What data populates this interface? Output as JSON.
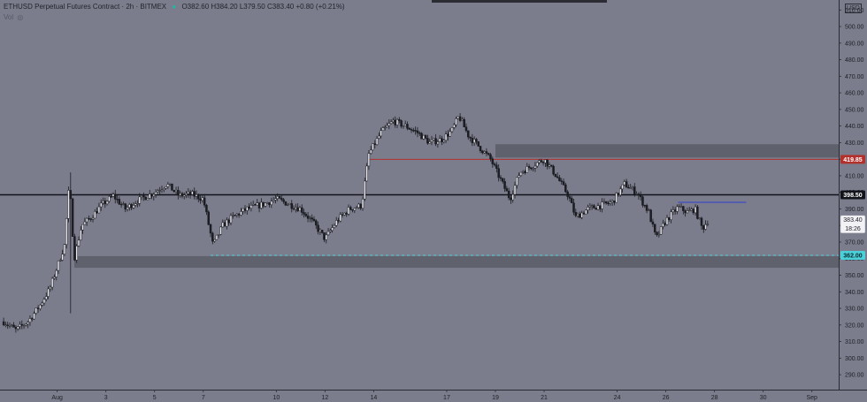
{
  "header": {
    "symbol": "ETHUSD Perpetual Futures Contract",
    "interval": "2h",
    "exchange": "BITMEX",
    "separator": "·",
    "dot": "●",
    "ohlc": "O382.60 H384.20 L379.50 C383.40 +0.80 (+0.21%)"
  },
  "volume_label": "Vol",
  "eye_icon": "◎",
  "currency_badge": "USD",
  "colors": {
    "background": "#7b7d8c",
    "candle": "#1c1d22",
    "zone": "#5b5c67",
    "resistance_line": "#b3312d",
    "support_line": "#11121a",
    "cyan_line": "#49d0d8",
    "blue_line": "#2f3fd1"
  },
  "chart_data": {
    "type": "candlestick",
    "title": "",
    "xlabel": "",
    "ylabel": "",
    "ylim": [
      281,
      516
    ],
    "y_ticks": [
      290,
      300,
      310,
      320,
      330,
      340,
      350,
      360,
      370,
      380,
      390,
      400,
      410,
      420,
      430,
      440,
      450,
      460,
      470,
      480,
      490,
      500,
      510
    ],
    "x_ticks": [
      {
        "label": "Aug",
        "day": 1
      },
      {
        "label": "3",
        "day": 3
      },
      {
        "label": "5",
        "day": 5
      },
      {
        "label": "7",
        "day": 7
      },
      {
        "label": "10",
        "day": 10
      },
      {
        "label": "12",
        "day": 12
      },
      {
        "label": "14",
        "day": 14
      },
      {
        "label": "17",
        "day": 17
      },
      {
        "label": "19",
        "day": 19
      },
      {
        "label": "21",
        "day": 21
      },
      {
        "label": "24",
        "day": 24
      },
      {
        "label": "26",
        "day": 26
      },
      {
        "label": "28",
        "day": 28
      },
      {
        "label": "30",
        "day": 30
      },
      {
        "label": "Sep",
        "day": 32
      }
    ],
    "x_range_days": [
      -1.35,
      33.1
    ],
    "price_path": [
      [
        -1.2,
        322
      ],
      [
        -0.7,
        317
      ],
      [
        -0.2,
        322
      ],
      [
        0.3,
        332
      ],
      [
        0.7,
        342
      ],
      [
        1.0,
        355
      ],
      [
        1.3,
        368
      ],
      [
        1.5,
        406
      ],
      [
        1.7,
        360
      ],
      [
        2.0,
        380
      ],
      [
        2.4,
        385
      ],
      [
        2.8,
        392
      ],
      [
        3.3,
        398
      ],
      [
        3.8,
        390
      ],
      [
        4.3,
        395
      ],
      [
        5.0,
        400
      ],
      [
        5.5,
        405
      ],
      [
        6.0,
        398
      ],
      [
        6.5,
        399
      ],
      [
        7.0,
        396
      ],
      [
        7.4,
        368
      ],
      [
        7.8,
        380
      ],
      [
        8.2,
        385
      ],
      [
        8.8,
        390
      ],
      [
        9.5,
        393
      ],
      [
        10.0,
        396
      ],
      [
        10.5,
        393
      ],
      [
        11.0,
        390
      ],
      [
        11.5,
        382
      ],
      [
        12.0,
        372
      ],
      [
        12.5,
        383
      ],
      [
        13.0,
        390
      ],
      [
        13.5,
        392
      ],
      [
        13.8,
        423
      ],
      [
        14.3,
        436
      ],
      [
        14.8,
        443
      ],
      [
        15.3,
        440
      ],
      [
        15.8,
        436
      ],
      [
        16.3,
        430
      ],
      [
        16.8,
        432
      ],
      [
        17.2,
        437
      ],
      [
        17.5,
        446
      ],
      [
        17.9,
        434
      ],
      [
        18.3,
        428
      ],
      [
        18.8,
        420
      ],
      [
        19.2,
        408
      ],
      [
        19.6,
        396
      ],
      [
        20.0,
        412
      ],
      [
        20.5,
        416
      ],
      [
        21.0,
        420
      ],
      [
        21.5,
        410
      ],
      [
        22.0,
        398
      ],
      [
        22.3,
        385
      ],
      [
        22.8,
        390
      ],
      [
        23.3,
        392
      ],
      [
        23.8,
        394
      ],
      [
        24.3,
        405
      ],
      [
        24.8,
        400
      ],
      [
        25.3,
        388
      ],
      [
        25.6,
        372
      ],
      [
        26.0,
        383
      ],
      [
        26.5,
        391
      ],
      [
        26.9,
        388
      ],
      [
        27.2,
        390
      ],
      [
        27.5,
        378
      ],
      [
        27.75,
        383.4
      ]
    ],
    "horizontal_levels": [
      {
        "price": 419.85,
        "label": "419.85",
        "style": "resistance",
        "from_day": 13.75
      },
      {
        "price": 398.5,
        "label": "398.50",
        "style": "support",
        "from_day": -1.35
      },
      {
        "price": 362.0,
        "label": "362.00",
        "style": "cyan-dashed",
        "from_day": 7.3
      },
      {
        "price": 394.0,
        "label": "",
        "style": "blue-segment",
        "from_day": 26.5,
        "to_day": 29.3
      }
    ],
    "zones": [
      {
        "from_day": 19.0,
        "price_low": 421,
        "price_high": 429
      },
      {
        "from_day": 1.7,
        "price_low": 354.5,
        "price_high": 361.5
      }
    ],
    "last_price": {
      "price": 383.4,
      "label": "383.40",
      "countdown": "18:26"
    }
  }
}
